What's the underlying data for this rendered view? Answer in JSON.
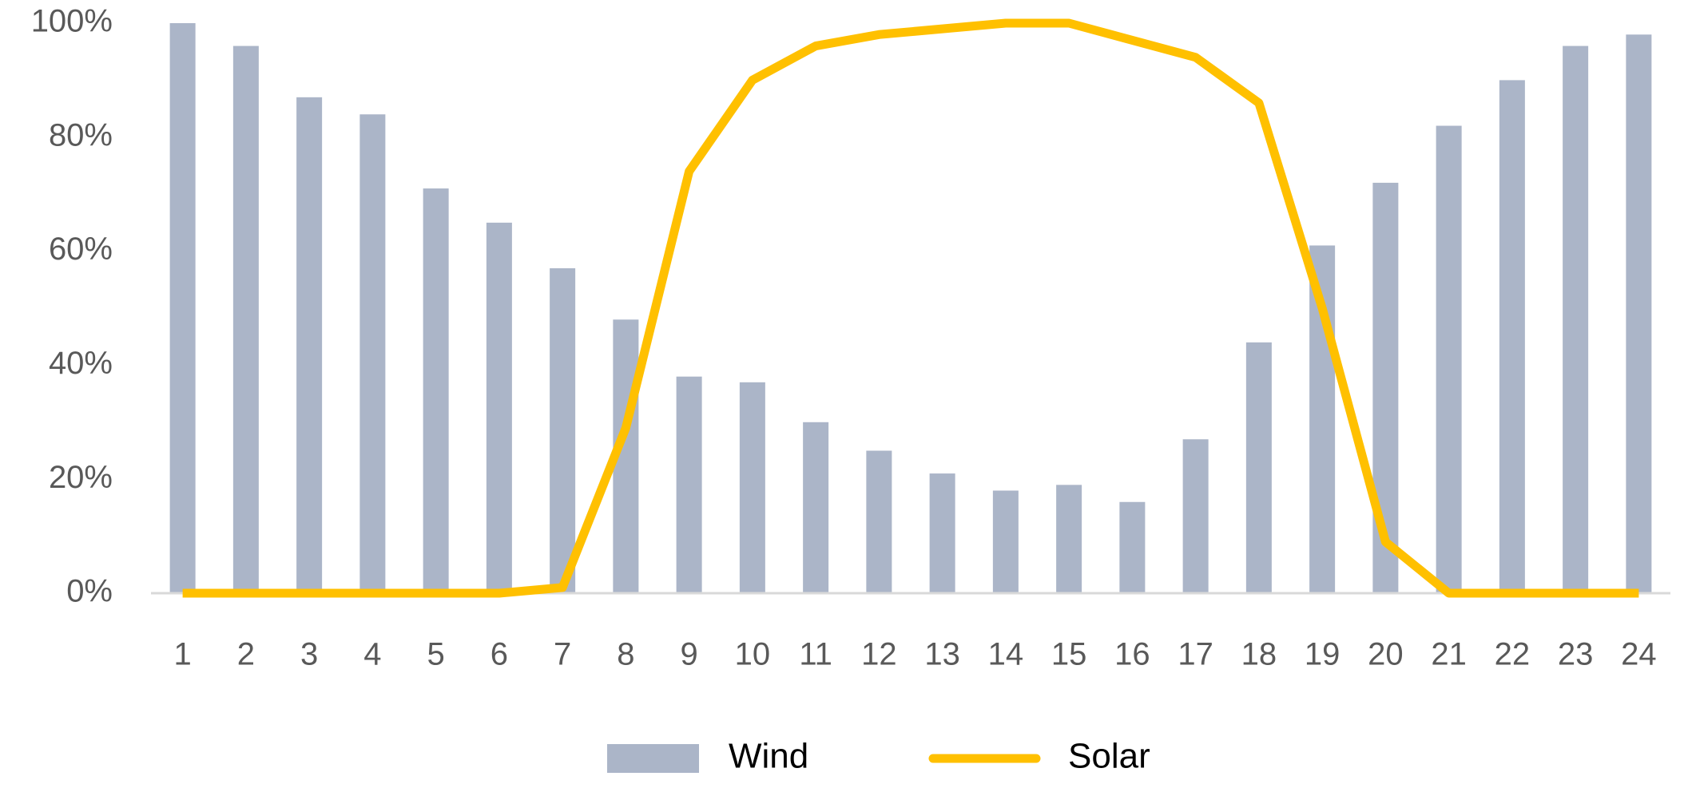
{
  "chart_data": {
    "type": "bar",
    "categories": [
      "1",
      "2",
      "3",
      "4",
      "5",
      "6",
      "7",
      "8",
      "9",
      "10",
      "11",
      "12",
      "13",
      "14",
      "15",
      "16",
      "17",
      "18",
      "19",
      "20",
      "21",
      "22",
      "23",
      "24"
    ],
    "series": [
      {
        "name": "Wind",
        "type": "bar",
        "color": "#abb5c8",
        "values": [
          100,
          96,
          87,
          84,
          71,
          65,
          57,
          48,
          38,
          37,
          30,
          25,
          21,
          18,
          19,
          16,
          27,
          44,
          61,
          72,
          82,
          90,
          96,
          98
        ]
      },
      {
        "name": "Solar",
        "type": "line",
        "color": "#ffc000",
        "values": [
          0,
          0,
          0,
          0,
          0,
          0,
          1,
          29,
          74,
          90,
          96,
          98,
          99,
          100,
          100,
          97,
          94,
          86,
          50,
          9,
          0,
          0,
          0,
          0
        ]
      }
    ],
    "ylim": [
      0,
      100
    ],
    "yticks": [
      {
        "value": 0,
        "label": "0%"
      },
      {
        "value": 20,
        "label": "20%"
      },
      {
        "value": 40,
        "label": "40%"
      },
      {
        "value": 60,
        "label": "60%"
      },
      {
        "value": 80,
        "label": "80%"
      },
      {
        "value": 100,
        "label": "100%"
      }
    ],
    "grid": false,
    "legend": "bottom"
  }
}
